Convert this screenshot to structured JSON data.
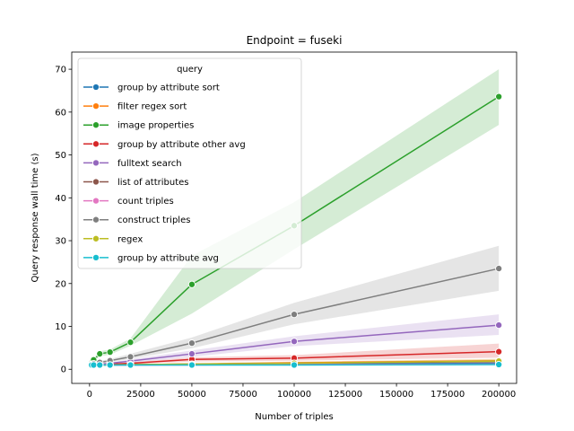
{
  "chart_data": {
    "type": "line",
    "title": "Endpoint = fuseki",
    "xlabel": "Number of triples",
    "ylabel": "Query response wall time (s)",
    "xlim": [
      -8700,
      208700
    ],
    "ylim": [
      -3.3,
      74
    ],
    "x_ticks": [
      0,
      25000,
      50000,
      75000,
      100000,
      125000,
      150000,
      175000,
      200000
    ],
    "y_ticks": [
      0,
      10,
      20,
      30,
      40,
      50,
      60,
      70
    ],
    "legend_title": "query",
    "legend_position": "upper-left",
    "grid": false,
    "x": [
      1000,
      2000,
      5000,
      10000,
      20000,
      50000,
      100000,
      200000
    ],
    "series": [
      {
        "name": "group by attribute sort",
        "color": "#1f77b4",
        "values": [
          1.0,
          1.0,
          1.0,
          1.0,
          1.0,
          1.1,
          1.2,
          1.4
        ],
        "band": [
          [
            0.9,
            1.1
          ],
          [
            0.9,
            1.1
          ],
          [
            0.9,
            1.1
          ],
          [
            0.9,
            1.1
          ],
          [
            0.9,
            1.1
          ],
          [
            1.0,
            1.2
          ],
          [
            1.1,
            1.3
          ],
          [
            1.2,
            1.6
          ]
        ]
      },
      {
        "name": "filter regex sort",
        "color": "#ff7f0e",
        "values": [
          1.0,
          1.0,
          1.0,
          1.0,
          1.1,
          1.2,
          1.5,
          2.0
        ],
        "band": [
          [
            0.9,
            1.1
          ],
          [
            0.9,
            1.1
          ],
          [
            0.9,
            1.1
          ],
          [
            0.9,
            1.1
          ],
          [
            1.0,
            1.2
          ],
          [
            1.1,
            1.4
          ],
          [
            1.3,
            1.8
          ],
          [
            1.7,
            2.4
          ]
        ]
      },
      {
        "name": "image properties",
        "color": "#2ca02c",
        "values": [
          1.5,
          2.2,
          3.6,
          4.0,
          6.3,
          19.8,
          33.5,
          63.6
        ],
        "band": [
          [
            1.2,
            1.8
          ],
          [
            1.8,
            2.6
          ],
          [
            3.0,
            4.2
          ],
          [
            3.4,
            4.6
          ],
          [
            5.5,
            7.2
          ],
          [
            13.0,
            26.5
          ],
          [
            28.0,
            39.0
          ],
          [
            57.0,
            70.0
          ]
        ]
      },
      {
        "name": "group by attribute other avg",
        "color": "#d62728",
        "values": [
          1.0,
          1.0,
          1.1,
          1.2,
          1.4,
          2.3,
          2.6,
          4.1
        ],
        "band": [
          [
            0.9,
            1.1
          ],
          [
            0.9,
            1.1
          ],
          [
            1.0,
            1.2
          ],
          [
            1.1,
            1.3
          ],
          [
            1.2,
            1.6
          ],
          [
            1.8,
            2.8
          ],
          [
            2.0,
            3.3
          ],
          [
            2.7,
            6.0
          ]
        ]
      },
      {
        "name": "fulltext search",
        "color": "#9467bd",
        "values": [
          1.0,
          1.1,
          1.2,
          1.4,
          1.9,
          3.6,
          6.5,
          10.3
        ],
        "band": [
          [
            0.9,
            1.1
          ],
          [
            1.0,
            1.2
          ],
          [
            1.1,
            1.3
          ],
          [
            1.2,
            1.6
          ],
          [
            1.5,
            2.3
          ],
          [
            2.9,
            4.4
          ],
          [
            5.4,
            7.7
          ],
          [
            8.0,
            12.8
          ]
        ]
      },
      {
        "name": "list of attributes",
        "color": "#8c564b",
        "values": [
          1.0,
          1.0,
          1.0,
          1.0,
          1.1,
          1.2,
          1.4,
          1.8
        ],
        "band": [
          [
            0.9,
            1.1
          ],
          [
            0.9,
            1.1
          ],
          [
            0.9,
            1.1
          ],
          [
            0.9,
            1.1
          ],
          [
            1.0,
            1.2
          ],
          [
            1.1,
            1.4
          ],
          [
            1.2,
            1.7
          ],
          [
            1.5,
            2.2
          ]
        ]
      },
      {
        "name": "count triples",
        "color": "#e377c2",
        "values": [
          1.0,
          1.0,
          1.0,
          1.0,
          1.0,
          1.0,
          1.1,
          1.2
        ],
        "band": [
          [
            0.9,
            1.1
          ],
          [
            0.9,
            1.1
          ],
          [
            0.9,
            1.1
          ],
          [
            0.9,
            1.1
          ],
          [
            0.9,
            1.1
          ],
          [
            0.9,
            1.1
          ],
          [
            1.0,
            1.2
          ],
          [
            1.1,
            1.4
          ]
        ]
      },
      {
        "name": "construct triples",
        "color": "#7f7f7f",
        "values": [
          1.2,
          1.3,
          1.6,
          2.0,
          2.9,
          6.1,
          12.8,
          23.5
        ],
        "band": [
          [
            1.0,
            1.4
          ],
          [
            1.1,
            1.5
          ],
          [
            1.4,
            1.9
          ],
          [
            1.7,
            2.4
          ],
          [
            2.4,
            3.6
          ],
          [
            4.9,
            7.4
          ],
          [
            10.5,
            15.5
          ],
          [
            18.3,
            28.8
          ]
        ]
      },
      {
        "name": "regex",
        "color": "#bcbd22",
        "values": [
          1.0,
          1.0,
          1.0,
          1.0,
          1.1,
          1.2,
          1.4,
          1.9
        ],
        "band": [
          [
            0.9,
            1.1
          ],
          [
            0.9,
            1.1
          ],
          [
            0.9,
            1.1
          ],
          [
            0.9,
            1.1
          ],
          [
            1.0,
            1.2
          ],
          [
            1.1,
            1.4
          ],
          [
            1.2,
            1.7
          ],
          [
            1.5,
            2.4
          ]
        ]
      },
      {
        "name": "group by attribute avg",
        "color": "#17becf",
        "values": [
          1.0,
          1.0,
          1.0,
          1.0,
          1.0,
          1.0,
          1.0,
          1.1
        ],
        "band": [
          [
            0.9,
            1.1
          ],
          [
            0.9,
            1.1
          ],
          [
            0.9,
            1.1
          ],
          [
            0.9,
            1.1
          ],
          [
            0.9,
            1.1
          ],
          [
            0.9,
            1.1
          ],
          [
            0.9,
            1.1
          ],
          [
            1.0,
            1.2
          ]
        ]
      }
    ]
  }
}
